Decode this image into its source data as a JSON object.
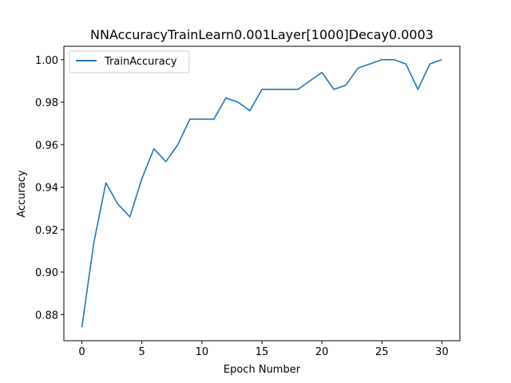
{
  "chart_data": {
    "type": "line",
    "title": "NNAccuracyTrainLearn0.001Layer[1000]Decay0.0003",
    "xlabel": "Epoch Number",
    "ylabel": "Accuracy",
    "xlim": [
      -1.5,
      31.5
    ],
    "ylim": [
      0.8677,
      1.0063
    ],
    "xticks": [
      0,
      5,
      10,
      15,
      20,
      25,
      30
    ],
    "xtick_labels": [
      "0",
      "5",
      "10",
      "15",
      "20",
      "25",
      "30"
    ],
    "yticks": [
      0.88,
      0.9,
      0.92,
      0.94,
      0.96,
      0.98,
      1.0
    ],
    "ytick_labels": [
      "0.88",
      "0.90",
      "0.92",
      "0.94",
      "0.96",
      "0.98",
      "1.00"
    ],
    "grid": false,
    "legend_position": "upper left",
    "series": [
      {
        "name": "TrainAccuracy",
        "color": "#1f77b4",
        "x": [
          0,
          1,
          2,
          3,
          4,
          5,
          6,
          7,
          8,
          9,
          10,
          11,
          12,
          13,
          14,
          15,
          16,
          17,
          18,
          19,
          20,
          21,
          22,
          23,
          24,
          25,
          26,
          27,
          28,
          29,
          30
        ],
        "y": [
          0.874,
          0.914,
          0.942,
          0.932,
          0.926,
          0.944,
          0.958,
          0.952,
          0.96,
          0.972,
          0.972,
          0.972,
          0.982,
          0.98,
          0.976,
          0.986,
          0.986,
          0.986,
          0.986,
          0.99,
          0.994,
          0.986,
          0.988,
          0.996,
          0.998,
          1.0,
          1.0,
          0.998,
          0.986,
          0.998,
          1.0
        ]
      }
    ]
  }
}
